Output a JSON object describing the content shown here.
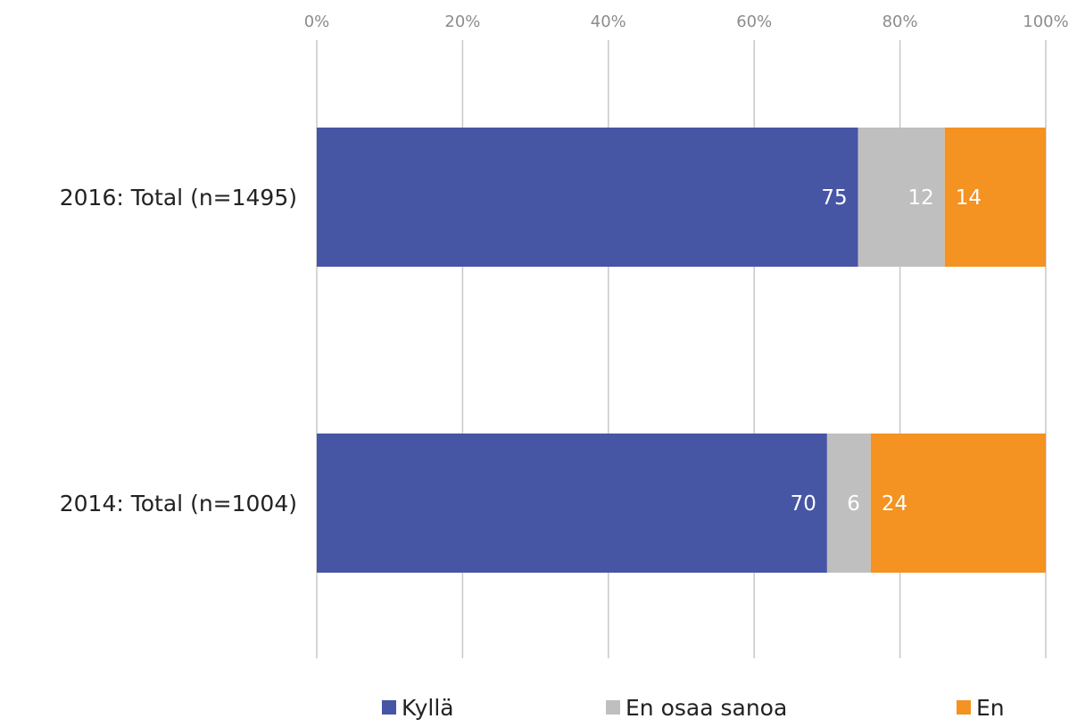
{
  "chart_data": {
    "type": "bar",
    "orientation": "horizontal",
    "stacked": "percent",
    "title": "",
    "xlabel": "",
    "ylabel": "",
    "xlim": [
      0,
      100
    ],
    "x_ticks": [
      "0%",
      "20%",
      "40%",
      "60%",
      "80%",
      "100%"
    ],
    "x_tick_position": "top",
    "grid": true,
    "legend_position": "bottom",
    "categories": [
      "2016: Total (n=1495)",
      "2014: Total (n=1004)"
    ],
    "series": [
      {
        "name": "Kyllä",
        "values": [
          75,
          70
        ],
        "labels": [
          "75",
          "70"
        ],
        "color": "#4755a5"
      },
      {
        "name": "En osaa sanoa",
        "values": [
          12,
          6
        ],
        "labels": [
          "12",
          "6"
        ],
        "color": "#bfbfbf"
      },
      {
        "name": "En",
        "values": [
          14,
          24
        ],
        "labels": [
          "14",
          "24"
        ],
        "color": "#f49222"
      }
    ]
  }
}
